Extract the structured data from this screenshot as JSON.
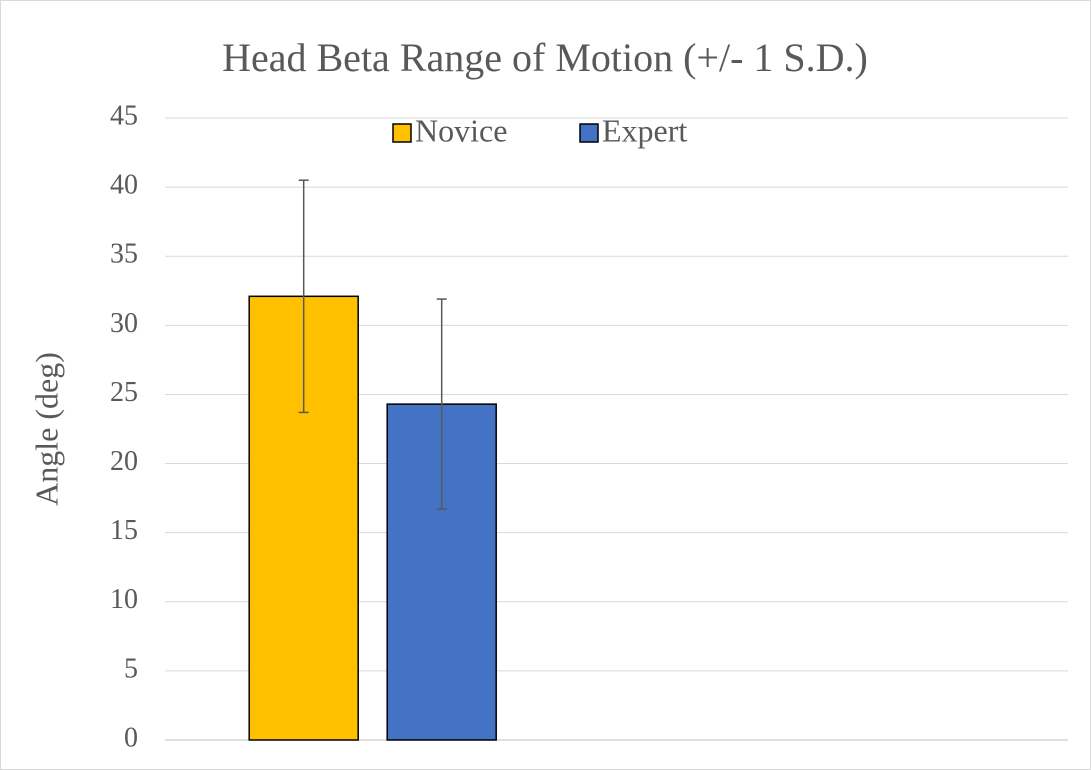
{
  "chart_data": {
    "type": "bar",
    "title": "Head Beta Range of Motion (+/- 1 S.D.)",
    "y_label": "Angle (deg)",
    "categories": [
      null
    ],
    "series": [
      {
        "name": "Novice",
        "color": "#ffc000",
        "values": [
          32.1
        ],
        "errors": [
          8.4
        ]
      },
      {
        "name": "Expert",
        "color": "#4472c4",
        "values": [
          24.3
        ],
        "errors": [
          7.6
        ]
      }
    ],
    "ylim": [
      0,
      45
    ],
    "yticks": [
      0,
      5,
      10,
      15,
      20,
      25,
      30,
      35,
      40,
      45
    ],
    "grid": true,
    "legend": "top"
  }
}
